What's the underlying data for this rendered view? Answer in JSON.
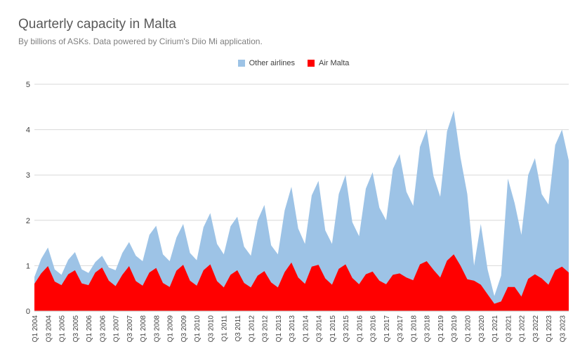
{
  "chart_data": {
    "type": "area",
    "title": "Quarterly capacity in Malta",
    "subtitle": "By billions of ASKs. Data powered by Cirium's Diio Mi application.",
    "ylim": [
      0,
      5
    ],
    "yticks": [
      0,
      1,
      2,
      3,
      4,
      5
    ],
    "grid": true,
    "legend_position": "top",
    "stacked": false,
    "x": [
      "Q1 2004",
      "Q2 2004",
      "Q3 2004",
      "Q4 2004",
      "Q1 2005",
      "Q2 2005",
      "Q3 2005",
      "Q4 2005",
      "Q1 2006",
      "Q2 2006",
      "Q3 2006",
      "Q4 2006",
      "Q1 2007",
      "Q2 2007",
      "Q3 2007",
      "Q4 2007",
      "Q1 2008",
      "Q2 2008",
      "Q3 2008",
      "Q4 2008",
      "Q1 2009",
      "Q2 2009",
      "Q3 2009",
      "Q4 2009",
      "Q1 2010",
      "Q2 2010",
      "Q3 2010",
      "Q4 2010",
      "Q1 2011",
      "Q2 2011",
      "Q3 2011",
      "Q4 2011",
      "Q1 2012",
      "Q2 2012",
      "Q3 2012",
      "Q4 2012",
      "Q1 2013",
      "Q2 2013",
      "Q3 2013",
      "Q4 2013",
      "Q1 2014",
      "Q2 2014",
      "Q3 2014",
      "Q4 2014",
      "Q1 2015",
      "Q2 2015",
      "Q3 2015",
      "Q4 2015",
      "Q1 2016",
      "Q2 2016",
      "Q3 2016",
      "Q4 2016",
      "Q1 2017",
      "Q2 2017",
      "Q3 2017",
      "Q4 2017",
      "Q1 2018",
      "Q2 2018",
      "Q3 2018",
      "Q4 2018",
      "Q1 2019",
      "Q2 2019",
      "Q3 2019",
      "Q4 2019",
      "Q1 2020",
      "Q2 2020",
      "Q3 2020",
      "Q4 2020",
      "Q1 2021",
      "Q2 2021",
      "Q3 2021",
      "Q4 2021",
      "Q1 2022",
      "Q2 2022",
      "Q3 2022",
      "Q4 2022",
      "Q1 2023",
      "Q2 2023",
      "Q3 2023",
      "Q4 2023"
    ],
    "xtick_labels": [
      "Q1 2004",
      "Q3 2004",
      "Q1 2005",
      "Q3 2005",
      "Q1 2006",
      "Q3 2006",
      "Q1 2007",
      "Q3 2007",
      "Q1 2008",
      "Q3 2008",
      "Q1 2009",
      "Q3 2009",
      "Q1 2010",
      "Q3 2010",
      "Q1 2011",
      "Q3 2011",
      "Q1 2012",
      "Q3 2012",
      "Q1 2013",
      "Q3 2013",
      "Q1 2014",
      "Q3 2014",
      "Q1 2015",
      "Q3 2015",
      "Q1 2016",
      "Q3 2016",
      "Q1 2017",
      "Q3 2017",
      "Q1 2018",
      "Q3 2018",
      "Q1 2019",
      "Q3 2019",
      "Q1 2020",
      "Q3 2020",
      "Q1 2021",
      "Q3 2021",
      "Q1 2022",
      "Q3 2022",
      "Q1 2023",
      "Q3 2023"
    ],
    "series": [
      {
        "name": "Other airlines",
        "color": "#9dc3e6",
        "values": [
          0.75,
          1.15,
          1.4,
          0.92,
          0.8,
          1.13,
          1.3,
          0.92,
          0.84,
          1.08,
          1.22,
          0.96,
          0.9,
          1.28,
          1.52,
          1.22,
          1.1,
          1.68,
          1.88,
          1.25,
          1.1,
          1.62,
          1.92,
          1.28,
          1.12,
          1.85,
          2.16,
          1.48,
          1.25,
          1.87,
          2.08,
          1.42,
          1.22,
          2.0,
          2.34,
          1.45,
          1.25,
          2.22,
          2.74,
          1.82,
          1.48,
          2.55,
          2.87,
          1.78,
          1.48,
          2.58,
          3.0,
          1.96,
          1.65,
          2.7,
          3.06,
          2.28,
          2.0,
          3.13,
          3.46,
          2.63,
          2.32,
          3.62,
          4.01,
          2.98,
          2.52,
          3.96,
          4.42,
          3.38,
          2.58,
          1.0,
          1.92,
          0.92,
          0.33,
          0.78,
          2.92,
          2.38,
          1.68,
          3.0,
          3.37,
          2.58,
          2.35,
          3.66,
          4.0,
          3.32
        ]
      },
      {
        "name": "Air Malta",
        "color": "#ff0000",
        "values": [
          0.6,
          0.83,
          0.99,
          0.65,
          0.57,
          0.81,
          0.9,
          0.61,
          0.57,
          0.85,
          0.96,
          0.67,
          0.55,
          0.8,
          0.99,
          0.66,
          0.56,
          0.85,
          0.95,
          0.62,
          0.53,
          0.89,
          1.02,
          0.67,
          0.56,
          0.9,
          1.03,
          0.66,
          0.52,
          0.8,
          0.9,
          0.62,
          0.52,
          0.78,
          0.88,
          0.63,
          0.52,
          0.86,
          1.07,
          0.74,
          0.6,
          0.98,
          1.02,
          0.72,
          0.58,
          0.93,
          1.03,
          0.73,
          0.59,
          0.81,
          0.87,
          0.67,
          0.59,
          0.8,
          0.83,
          0.74,
          0.68,
          1.03,
          1.1,
          0.91,
          0.74,
          1.11,
          1.25,
          1.0,
          0.7,
          0.67,
          0.58,
          0.37,
          0.16,
          0.21,
          0.53,
          0.53,
          0.32,
          0.71,
          0.81,
          0.72,
          0.58,
          0.9,
          0.98,
          0.85
        ]
      }
    ]
  }
}
